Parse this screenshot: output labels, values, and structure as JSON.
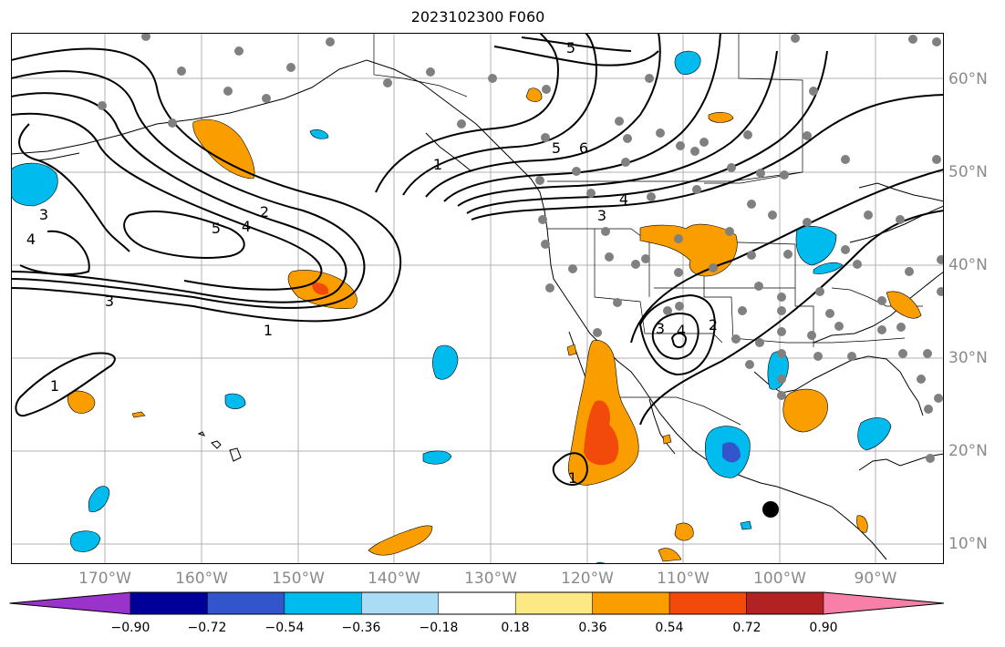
{
  "title": "2023102300 F060",
  "map": {
    "projection": "plate-carree",
    "lon_range": [
      -180,
      -83
    ],
    "lat_range": [
      8,
      65
    ],
    "grid": true,
    "lat_ticks": [
      "60°N",
      "50°N",
      "40°N",
      "30°N",
      "20°N",
      "10°N"
    ],
    "lon_ticks": [
      "170°W",
      "160°W",
      "150°W",
      "140°W",
      "130°W",
      "120°W",
      "110°W",
      "100°W",
      "90°W"
    ],
    "contour_labels": [
      "5",
      "5",
      "6",
      "1",
      "4",
      "3",
      "3",
      "4",
      "5",
      "4",
      "2",
      "3",
      "1",
      "1",
      "3",
      "4",
      "2",
      "1"
    ],
    "station_marker_color": "#808080",
    "highlight_marker_color": "#000000"
  },
  "colorbar": {
    "colors": [
      "#9933cc",
      "#000099",
      "#3355cc",
      "#00bbee",
      "#aaddf5",
      "#ffffff",
      "#fce884",
      "#fa9e00",
      "#f24a0b",
      "#b22222",
      "#f77fa8"
    ],
    "tick_labels": [
      "−0.90",
      "−0.72",
      "−0.54",
      "−0.36",
      "−0.18",
      "0.18",
      "0.36",
      "0.54",
      "0.72",
      "0.90"
    ]
  }
}
